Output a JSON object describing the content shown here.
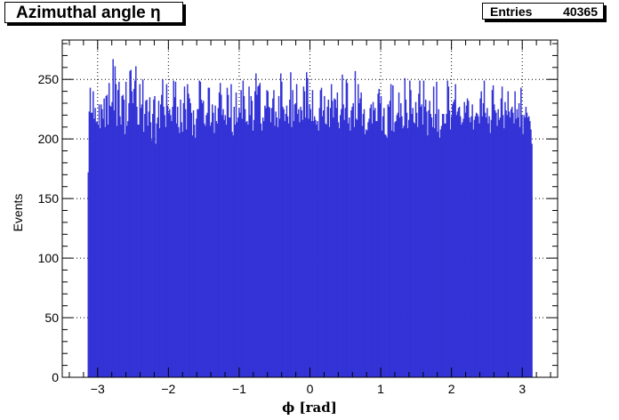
{
  "title": "Azimuthal angle η",
  "stats": {
    "label": "Entries",
    "value": "40365"
  },
  "colors": {
    "bar": "#3333d6"
  },
  "chart_data": {
    "type": "bar",
    "title": "Azimuthal angle η",
    "xlabel": "ϕ [rad]",
    "ylabel": "Events",
    "xlim": [
      -3.5,
      3.5
    ],
    "ylim": [
      0,
      283
    ],
    "xticks": [
      -3,
      -2,
      -1,
      0,
      1,
      2,
      3
    ],
    "xtick_labels": [
      "−3",
      "−2",
      "−1",
      "0",
      "1",
      "2",
      "3"
    ],
    "yticks": [
      0,
      50,
      100,
      150,
      200,
      250
    ],
    "bin_range": [
      -3.1416,
      3.1416
    ],
    "grid": true,
    "values": [
      172,
      223,
      243,
      222,
      222,
      240,
      217,
      226,
      214,
      215,
      212,
      229,
      209,
      229,
      225,
      217,
      234,
      210,
      236,
      237,
      212,
      247,
      228,
      227,
      231,
      267,
      224,
      261,
      246,
      211,
      241,
      248,
      219,
      212,
      236,
      237,
      233,
      204,
      248,
      211,
      215,
      230,
      257,
      258,
      240,
      230,
      242,
      249,
      261,
      227,
      212,
      212,
      246,
      226,
      229,
      250,
      206,
      221,
      232,
      233,
      211,
      223,
      235,
      214,
      199,
      221,
      233,
      236,
      196,
      213,
      218,
      232,
      209,
      229,
      237,
      250,
      227,
      220,
      210,
      246,
      228,
      222,
      225,
      220,
      215,
      227,
      249,
      235,
      248,
      213,
      227,
      210,
      205,
      233,
      214,
      206,
      230,
      244,
      225,
      208,
      246,
      238,
      234,
      230,
      222,
      203,
      224,
      212,
      201,
      217,
      225,
      225,
      249,
      248,
      233,
      230,
      232,
      213,
      211,
      220,
      222,
      243,
      243,
      211,
      214,
      229,
      222,
      205,
      228,
      215,
      213,
      226,
      239,
      247,
      237,
      220,
      225,
      216,
      220,
      212,
      243,
      237,
      218,
      218,
      246,
      206,
      203,
      227,
      212,
      239,
      214,
      218,
      226,
      222,
      241,
      217,
      249,
      236,
      225,
      214,
      215,
      212,
      244,
      220,
      236,
      232,
      207,
      216,
      240,
      255,
      237,
      244,
      245,
      247,
      213,
      207,
      218,
      215,
      228,
      226,
      241,
      240,
      227,
      226,
      214,
      226,
      234,
      241,
      211,
      223,
      218,
      210,
      236,
      217,
      255,
      248,
      227,
      225,
      215,
      221,
      228,
      219,
      213,
      233,
      256,
      210,
      241,
      215,
      229,
      230,
      246,
      221,
      225,
      214,
      227,
      224,
      216,
      244,
      240,
      218,
      256,
      251,
      217,
      229,
      225,
      215,
      241,
      215,
      219,
      216,
      212,
      215,
      207,
      226,
      241,
      243,
      219,
      224,
      236,
      213,
      212,
      227,
      233,
      210,
      226,
      246,
      232,
      218,
      234,
      233,
      226,
      239,
      214,
      209,
      220,
      225,
      254,
      229,
      216,
      226,
      250,
      247,
      213,
      218,
      207,
      224,
      227,
      230,
      210,
      257,
      217,
      216,
      246,
      230,
      234,
      239,
      211,
      221,
      225,
      204,
      208,
      207,
      214,
      217,
      226,
      229,
      213,
      231,
      224,
      226,
      215,
      215,
      238,
      242,
      230,
      236,
      207,
      219,
      226,
      204,
      203,
      201,
      229,
      227,
      232,
      246,
      207,
      245,
      206,
      214,
      215,
      220,
      222,
      239,
      218,
      230,
      219,
      209,
      211,
      251,
      233,
      222,
      209,
      216,
      249,
      241,
      221,
      226,
      214,
      213,
      231,
      222,
      210,
      238,
      249,
      227,
      229,
      212,
      249,
      227,
      233,
      223,
      203,
      224,
      232,
      221,
      218,
      210,
      244,
      209,
      221,
      248,
      206,
      225,
      201,
      208,
      211,
      221,
      221,
      213,
      213,
      221,
      249,
      244,
      224,
      208,
      219,
      229,
      231,
      233,
      246,
      220,
      223,
      226,
      227,
      219,
      212,
      214,
      217,
      231,
      222,
      228,
      234,
      232,
      218,
      214,
      219,
      229,
      208,
      216,
      219,
      222,
      221,
      219,
      213,
      234,
      240,
      219,
      230,
      249,
      222,
      218,
      226,
      213,
      219,
      205,
      216,
      241,
      245,
      229,
      224,
      222,
      211,
      225,
      216,
      218,
      234,
      244,
      220,
      209,
      231,
      224,
      220,
      240,
      223,
      218,
      225,
      227,
      222,
      213,
      240,
      217,
      225,
      218,
      230,
      210,
      243,
      220,
      204,
      220,
      218,
      227,
      222,
      218,
      219,
      215,
      208,
      196
    ]
  }
}
